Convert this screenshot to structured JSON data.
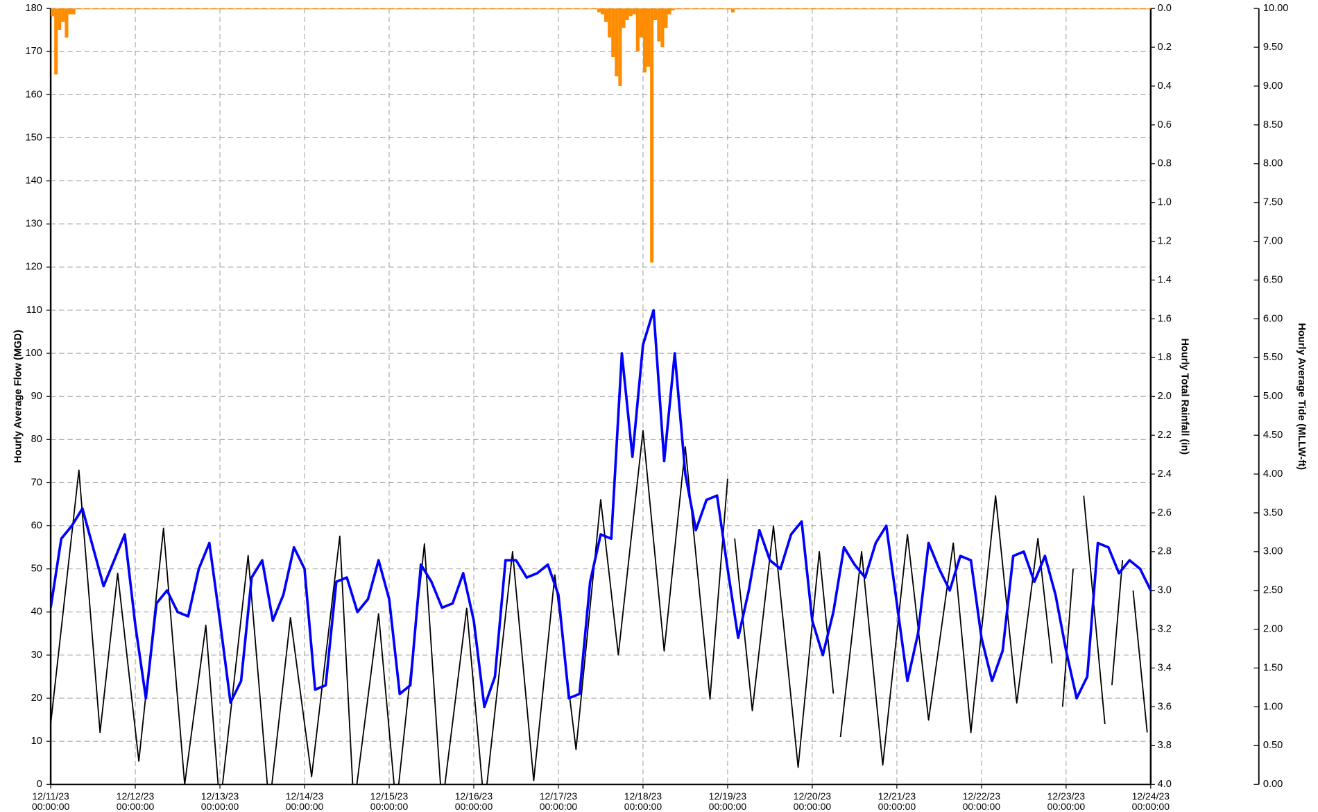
{
  "chart_data": {
    "type": "combo",
    "xlabel_note": null,
    "ylabel": "Hourly Average Flow (MGD)",
    "y2label": "Hourly Total Rainfall (in)",
    "y3label": "Hourly Average Tide (MLLW-ft)",
    "xlim": [
      0,
      312
    ],
    "xticks": [
      {
        "value": 0,
        "label": "12/11/23\n00:00:00"
      },
      {
        "value": 24,
        "label": "12/12/23\n00:00:00"
      },
      {
        "value": 48,
        "label": "12/13/23\n00:00:00"
      },
      {
        "value": 72,
        "label": "12/14/23\n00:00:00"
      },
      {
        "value": 96,
        "label": "12/15/23\n00:00:00"
      },
      {
        "value": 120,
        "label": "12/16/23\n00:00:00"
      },
      {
        "value": 144,
        "label": "12/17/23\n00:00:00"
      },
      {
        "value": 168,
        "label": "12/18/23\n00:00:00"
      },
      {
        "value": 192,
        "label": "12/19/23\n00:00:00"
      },
      {
        "value": 216,
        "label": "12/20/23\n00:00:00"
      },
      {
        "value": 240,
        "label": "12/21/23\n00:00:00"
      },
      {
        "value": 264,
        "label": "12/22/23\n00:00:00"
      },
      {
        "value": 288,
        "label": "12/23/23\n00:00:00"
      },
      {
        "value": 312,
        "label": "12/24/23\n00:00:00"
      }
    ],
    "ylim": [
      0,
      180
    ],
    "yticks": [
      0,
      10,
      20,
      30,
      40,
      50,
      60,
      70,
      80,
      90,
      100,
      110,
      120,
      130,
      140,
      150,
      160,
      170,
      180
    ],
    "y2lim": [
      0,
      4
    ],
    "y2_reversed": true,
    "y2ticks": [
      {
        "value": 0,
        "label": "0.0"
      },
      0.2,
      0.4,
      0.6,
      0.8,
      {
        "value": 1,
        "label": "1.0"
      },
      1.2,
      1.4,
      1.6,
      1.8,
      {
        "value": 2,
        "label": "2.0"
      },
      2.2,
      2.4,
      2.6,
      2.8,
      {
        "value": 3,
        "label": "3.0"
      },
      3.2,
      3.4,
      3.6,
      3.8,
      {
        "value": 4,
        "label": "4.0"
      }
    ],
    "y3lim": [
      0,
      10
    ],
    "y3ticks": [
      {
        "value": 0,
        "label": "0.00"
      },
      {
        "value": 0.5,
        "label": "0.50"
      },
      {
        "value": 1,
        "label": "1.00"
      },
      {
        "value": 1.5,
        "label": "1.50"
      },
      {
        "value": 2,
        "label": "2.00"
      },
      {
        "value": 2.5,
        "label": "2.50"
      },
      {
        "value": 3,
        "label": "3.00"
      },
      {
        "value": 3.5,
        "label": "3.50"
      },
      {
        "value": 4,
        "label": "4.00"
      },
      {
        "value": 4.5,
        "label": "4.50"
      },
      {
        "value": 5,
        "label": "5.00"
      },
      {
        "value": 5.5,
        "label": "5.50"
      },
      {
        "value": 6,
        "label": "6.00"
      },
      {
        "value": 6.5,
        "label": "6.50"
      },
      {
        "value": 7,
        "label": "7.00"
      },
      {
        "value": 7.5,
        "label": "7.50"
      },
      {
        "value": 8,
        "label": "8.00"
      },
      {
        "value": 8.5,
        "label": "8.50"
      },
      {
        "value": 9,
        "label": "9.00"
      },
      {
        "value": 9.5,
        "label": "9.50"
      },
      {
        "value": 10,
        "label": "10.00"
      }
    ],
    "grid": true,
    "series": [
      {
        "type": "bar",
        "axis": "y2",
        "color": "#ff8c00",
        "x": [
          0,
          1,
          2,
          3,
          4,
          5,
          6,
          155,
          156,
          157,
          158,
          159,
          160,
          161,
          162,
          163,
          164,
          165,
          166,
          167,
          168,
          169,
          170,
          171,
          172,
          173,
          174,
          175,
          176,
          193
        ],
        "values": [
          0.04,
          0.34,
          0.11,
          0.07,
          0.15,
          0.03,
          0.03,
          0.02,
          0.03,
          0.07,
          0.15,
          0.25,
          0.35,
          0.4,
          0.1,
          0.06,
          0.04,
          0.03,
          0.22,
          0.15,
          0.33,
          0.3,
          1.31,
          0.06,
          0.17,
          0.2,
          0.1,
          0.03,
          0.01,
          0.02
        ]
      },
      {
        "type": "line",
        "axis": "y",
        "color": "#0000ff",
        "x": [
          0,
          3,
          6,
          9,
          12,
          15,
          18,
          21,
          24,
          27,
          30,
          33,
          36,
          39,
          42,
          45,
          48,
          51,
          54,
          57,
          60,
          63,
          66,
          69,
          72,
          75,
          78,
          81,
          84,
          87,
          90,
          93,
          96,
          99,
          102,
          105,
          108,
          111,
          114,
          117,
          120,
          123,
          126,
          129,
          132,
          135,
          138,
          141,
          144,
          147,
          150,
          153,
          156,
          159,
          162,
          165,
          168,
          171,
          174,
          177,
          180,
          183,
          186,
          189,
          192,
          195,
          198,
          201,
          204,
          207,
          210,
          213,
          216,
          219,
          222,
          225,
          228,
          231,
          234,
          237,
          240,
          243,
          246,
          249,
          252,
          255,
          258,
          261,
          264,
          267,
          270,
          273,
          276,
          279,
          282,
          285,
          288,
          291,
          294,
          297,
          300,
          303,
          306,
          309,
          312
        ],
        "values": [
          41,
          57,
          60,
          64,
          55,
          46,
          52,
          58,
          37,
          20,
          42,
          45,
          40,
          39,
          50,
          56,
          38,
          19,
          24,
          48,
          52,
          38,
          44,
          55,
          50,
          22,
          23,
          47,
          48,
          40,
          43,
          52,
          43,
          21,
          23,
          51,
          47,
          41,
          42,
          49,
          38,
          18,
          25,
          52,
          52,
          48,
          49,
          51,
          44,
          20,
          21,
          47,
          58,
          57,
          100,
          76,
          102,
          110,
          75,
          100,
          72,
          59,
          66,
          67,
          50,
          34,
          45,
          59,
          52,
          50,
          58,
          61,
          38,
          30,
          40,
          55,
          51,
          48,
          56,
          60,
          42,
          24,
          35,
          56,
          50,
          45,
          53,
          52,
          34,
          24,
          31,
          53,
          54,
          47,
          53,
          44,
          31,
          20,
          25,
          56,
          55,
          49,
          52,
          50,
          45
        ]
      },
      {
        "type": "line",
        "axis": "y3",
        "color": "#000000",
        "x": [
          0,
          8,
          14,
          19,
          25,
          32,
          38,
          44,
          48,
          56,
          62,
          68,
          74,
          82,
          86,
          93,
          98,
          106,
          111,
          118,
          123,
          131,
          137,
          143,
          149,
          156,
          161,
          168,
          174,
          180,
          187,
          192,
          null,
          194,
          199,
          205,
          212,
          218,
          222,
          null,
          224,
          230,
          236,
          243,
          249,
          256,
          261,
          268,
          274,
          280,
          284,
          null,
          287,
          290,
          null,
          293,
          299,
          null,
          301,
          304,
          null,
          307,
          311
        ],
        "values": [
          0.78,
          4.05,
          0.67,
          2.72,
          0.3,
          3.3,
          0,
          2.05,
          -0.3,
          2.95,
          -0.3,
          2.15,
          0.1,
          3.2,
          -0.3,
          2.2,
          -0.3,
          3.1,
          -0.3,
          2.27,
          -0.3,
          3.0,
          0.05,
          2.7,
          0.45,
          3.67,
          1.67,
          4.56,
          1.72,
          4.35,
          1.1,
          3.94,
          null,
          3.17,
          0.95,
          3.33,
          0.22,
          3.0,
          1.17,
          null,
          0.61,
          3.0,
          0.25,
          3.22,
          0.83,
          3.11,
          0.67,
          3.72,
          1.05,
          3.17,
          1.56,
          null,
          1.0,
          2.78,
          null,
          3.72,
          0.78,
          null,
          1.28,
          2.89,
          null,
          2.5,
          0.67
        ]
      }
    ]
  }
}
